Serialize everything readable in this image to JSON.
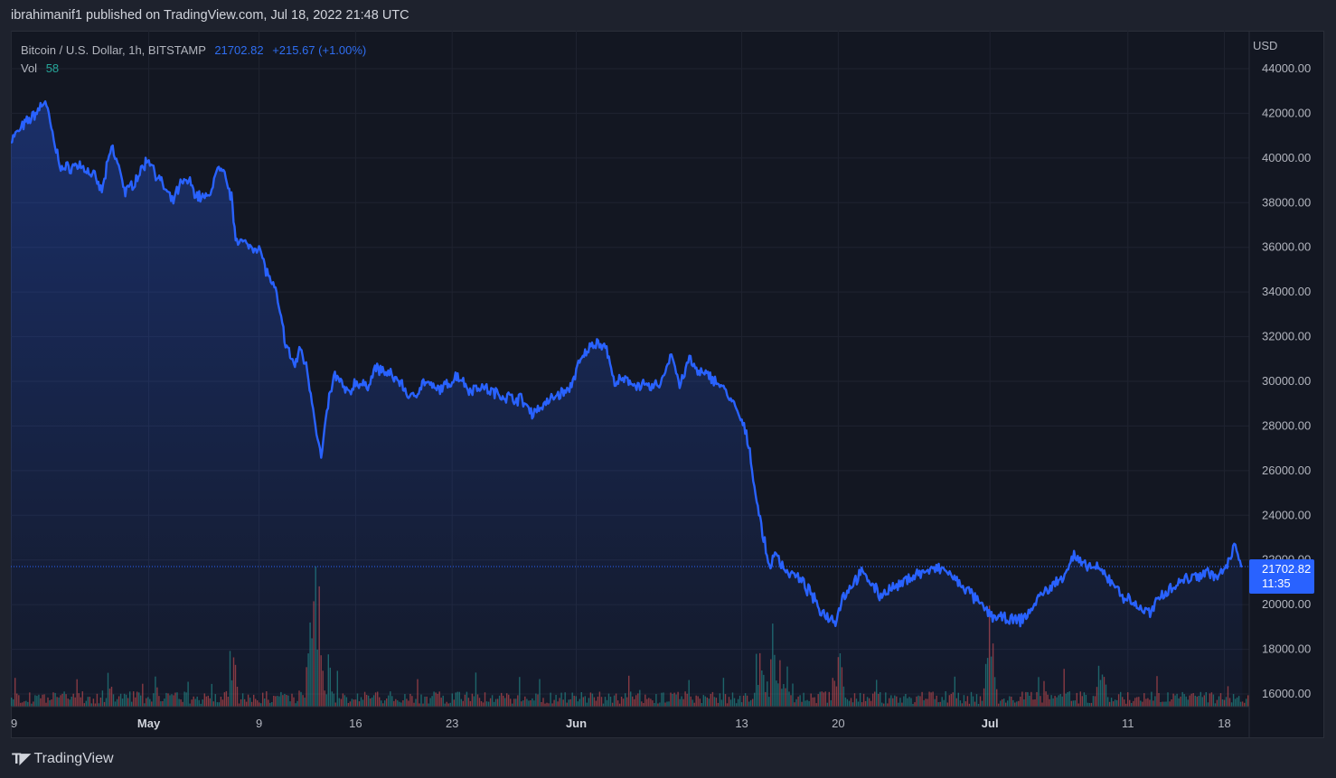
{
  "header": {
    "published_text": "ibrahimanif1 published on TradingView.com, Jul 18, 2022 21:48 UTC"
  },
  "legend": {
    "symbol": "Bitcoin / U.S. Dollar, 1h, BITSTAMP",
    "last_price": "21702.82",
    "change": "+215.67 (+1.00%)",
    "volume_label": "Vol",
    "volume_value": "58"
  },
  "price_label": {
    "value": "21702.82",
    "countdown": "11:35"
  },
  "footer": {
    "logo_text": "TradingView"
  },
  "colors": {
    "line": "#2962ff",
    "up": "#26a69a",
    "down": "#ef5350",
    "price_tag": "#2962ff"
  },
  "chart_data": {
    "type": "area",
    "currency_label": "USD",
    "y_ticks": [
      "44000.00",
      "42000.00",
      "40000.00",
      "38000.00",
      "36000.00",
      "34000.00",
      "32000.00",
      "30000.00",
      "28000.00",
      "26000.00",
      "24000.00",
      "22000.00",
      "20000.00",
      "18000.00",
      "16000.00"
    ],
    "x_ticks": [
      {
        "label": "9",
        "day": 0
      },
      {
        "label": "May",
        "day": 10,
        "bold": true
      },
      {
        "label": "9",
        "day": 18
      },
      {
        "label": "16",
        "day": 25
      },
      {
        "label": "23",
        "day": 32
      },
      {
        "label": "Jun",
        "day": 41,
        "bold": true
      },
      {
        "label": "13",
        "day": 53
      },
      {
        "label": "20",
        "day": 60
      },
      {
        "label": "Jul",
        "day": 71,
        "bold": true
      },
      {
        "label": "11",
        "day": 81
      },
      {
        "label": "18",
        "day": 88
      }
    ],
    "ylim": [
      15500,
      45000
    ],
    "xlim_days": [
      0,
      89.8
    ],
    "last_price": 21702.82,
    "series": [
      {
        "name": "BTCUSD",
        "points": [
          [
            0,
            40800
          ],
          [
            1,
            41500
          ],
          [
            1.8,
            42000
          ],
          [
            2.5,
            42600
          ],
          [
            3.2,
            40500
          ],
          [
            3.7,
            39500
          ],
          [
            5,
            39700
          ],
          [
            6,
            39200
          ],
          [
            6.6,
            38500
          ],
          [
            7.3,
            40500
          ],
          [
            8,
            39300
          ],
          [
            8.3,
            38400
          ],
          [
            9,
            39000
          ],
          [
            9.7,
            39700
          ],
          [
            10,
            40000
          ],
          [
            10.6,
            39200
          ],
          [
            11,
            38800
          ],
          [
            11.7,
            38000
          ],
          [
            12.3,
            38800
          ],
          [
            12.9,
            39000
          ],
          [
            13.5,
            38300
          ],
          [
            14.3,
            38200
          ],
          [
            15,
            39500
          ],
          [
            15.5,
            39200
          ],
          [
            16,
            38200
          ],
          [
            16.3,
            36500
          ],
          [
            17,
            36100
          ],
          [
            18,
            36000
          ],
          [
            18.5,
            35000
          ],
          [
            19.2,
            34000
          ],
          [
            20,
            31500
          ],
          [
            20.6,
            30700
          ],
          [
            21,
            31500
          ],
          [
            21.5,
            30500
          ],
          [
            22,
            28500
          ],
          [
            22.5,
            26500
          ],
          [
            23,
            29000
          ],
          [
            23.5,
            30300
          ],
          [
            24.5,
            29400
          ],
          [
            25,
            30000
          ],
          [
            25.8,
            29700
          ],
          [
            26.4,
            30600
          ],
          [
            27.2,
            30400
          ],
          [
            28.2,
            30000
          ],
          [
            29,
            29200
          ],
          [
            30,
            30000
          ],
          [
            30.8,
            29600
          ],
          [
            31.6,
            29800
          ],
          [
            32.4,
            30300
          ],
          [
            33.3,
            29600
          ],
          [
            34,
            29800
          ],
          [
            35,
            29500
          ],
          [
            36,
            29300
          ],
          [
            37,
            29200
          ],
          [
            37.8,
            28600
          ],
          [
            38.8,
            29000
          ],
          [
            39.6,
            29400
          ],
          [
            40.5,
            29600
          ],
          [
            41,
            30500
          ],
          [
            41.8,
            31400
          ],
          [
            42.5,
            31800
          ],
          [
            43.2,
            31500
          ],
          [
            43.7,
            30000
          ],
          [
            44.8,
            30000
          ],
          [
            45.7,
            29800
          ],
          [
            46.5,
            29700
          ],
          [
            47.2,
            30000
          ],
          [
            47.9,
            31300
          ],
          [
            48.5,
            29800
          ],
          [
            49.2,
            31000
          ],
          [
            49.8,
            30400
          ],
          [
            50.8,
            30200
          ],
          [
            51.5,
            29800
          ],
          [
            52.2,
            29200
          ],
          [
            53,
            28200
          ],
          [
            53.5,
            27200
          ],
          [
            54,
            25000
          ],
          [
            54.5,
            23200
          ],
          [
            55,
            21700
          ],
          [
            55.5,
            22300
          ],
          [
            56.2,
            21500
          ],
          [
            56.9,
            21300
          ],
          [
            57.5,
            20900
          ],
          [
            58,
            20500
          ],
          [
            58.6,
            19800
          ],
          [
            59.2,
            19500
          ],
          [
            59.8,
            19300
          ],
          [
            60.3,
            20300
          ],
          [
            61,
            20900
          ],
          [
            61.6,
            21400
          ],
          [
            62.3,
            21100
          ],
          [
            63,
            20400
          ],
          [
            63.7,
            20700
          ],
          [
            64.4,
            20800
          ],
          [
            65.1,
            21200
          ],
          [
            65.8,
            21400
          ],
          [
            66.5,
            21500
          ],
          [
            67.2,
            21600
          ],
          [
            67.9,
            21500
          ],
          [
            68.6,
            21000
          ],
          [
            69.3,
            20700
          ],
          [
            70,
            20200
          ],
          [
            70.6,
            19800
          ],
          [
            71.2,
            19500
          ],
          [
            71.8,
            19400
          ],
          [
            72.5,
            19300
          ],
          [
            73.2,
            19300
          ],
          [
            73.8,
            19600
          ],
          [
            74.5,
            20300
          ],
          [
            75.2,
            20700
          ],
          [
            75.9,
            21000
          ],
          [
            76.5,
            21500
          ],
          [
            77.1,
            22200
          ],
          [
            77.8,
            21700
          ],
          [
            78.5,
            21700
          ],
          [
            79.2,
            21400
          ],
          [
            79.9,
            21000
          ],
          [
            80.6,
            20400
          ],
          [
            81.3,
            20100
          ],
          [
            82,
            19800
          ],
          [
            82.7,
            19600
          ],
          [
            83.3,
            20400
          ],
          [
            84,
            20700
          ],
          [
            84.7,
            21000
          ],
          [
            85.4,
            21200
          ],
          [
            86,
            21300
          ],
          [
            86.8,
            21500
          ],
          [
            87.5,
            21200
          ],
          [
            88.2,
            21700
          ],
          [
            88.8,
            22700
          ],
          [
            89.3,
            21702.82
          ]
        ]
      }
    ]
  }
}
